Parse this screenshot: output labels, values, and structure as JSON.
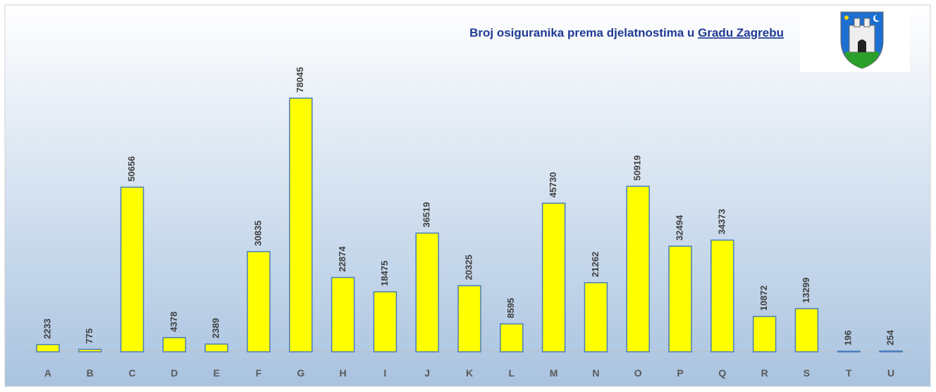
{
  "chart_data": {
    "type": "bar",
    "title": "Broj osiguranika prema djelatnostima u",
    "title_underlined": "Gradu Zagrebu",
    "categories": [
      "A",
      "B",
      "C",
      "D",
      "E",
      "F",
      "G",
      "H",
      "I",
      "J",
      "K",
      "L",
      "M",
      "N",
      "O",
      "P",
      "Q",
      "R",
      "S",
      "T",
      "U"
    ],
    "values": [
      2233,
      775,
      50656,
      4378,
      2389,
      30835,
      78045,
      22874,
      18475,
      36519,
      20325,
      8595,
      45730,
      21262,
      50919,
      32494,
      34373,
      10872,
      13299,
      196,
      254
    ],
    "color": "#ffff00",
    "ylim": [
      0,
      100000
    ]
  }
}
